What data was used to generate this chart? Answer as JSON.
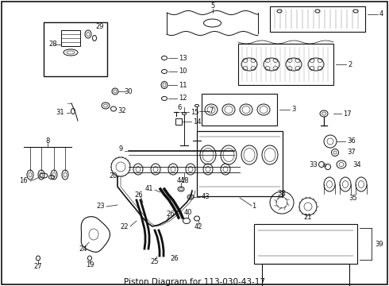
{
  "title": "Piston Diagram for 113-030-43-17",
  "bg_color": "#ffffff",
  "border_color": "#000000",
  "title_fontsize": 7.5,
  "title_color": "#000000",
  "fig_width": 4.9,
  "fig_height": 3.6,
  "dpi": 100,
  "lw": 0.7,
  "dk": "#111111"
}
